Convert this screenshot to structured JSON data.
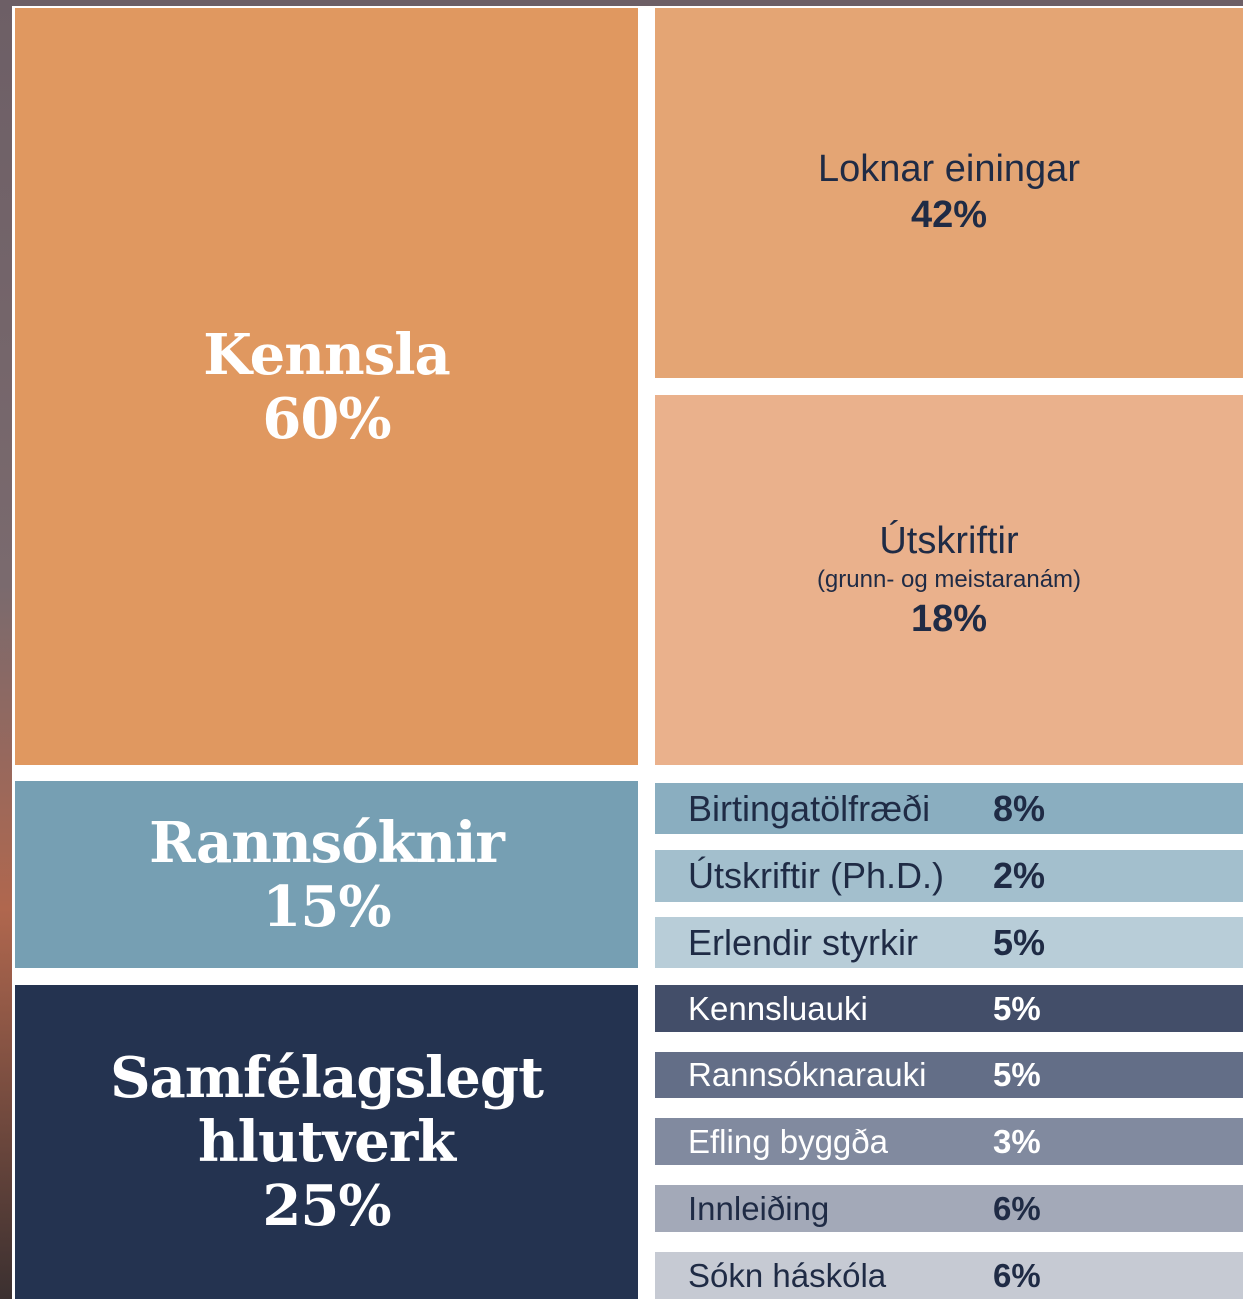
{
  "main": [
    {
      "label": "Kennsla",
      "value": "60%"
    },
    {
      "label": "Rannsóknir",
      "value": "15%"
    },
    {
      "label": "Samfélagslegt hlutverk",
      "value": "25%"
    }
  ],
  "teaching": [
    {
      "label": "Loknar einingar",
      "value": "42%"
    },
    {
      "label": "Útskriftir",
      "note": "(grunn- og meistaranám)",
      "value": "18%"
    }
  ],
  "research": [
    {
      "label": "Birtingatölfræði",
      "value": "8%"
    },
    {
      "label": "Útskriftir (Ph.D.)",
      "value": "2%"
    },
    {
      "label": "Erlendir styrkir",
      "value": "5%"
    }
  ],
  "society": [
    {
      "label": "Kennsluauki",
      "value": "5%"
    },
    {
      "label": "Rannsóknarauki",
      "value": "5%"
    },
    {
      "label": "Efling byggða",
      "value": "3%"
    },
    {
      "label": "Innleiðing",
      "value": "6%"
    },
    {
      "label": "Sókn háskóla",
      "value": "6%"
    }
  ]
}
